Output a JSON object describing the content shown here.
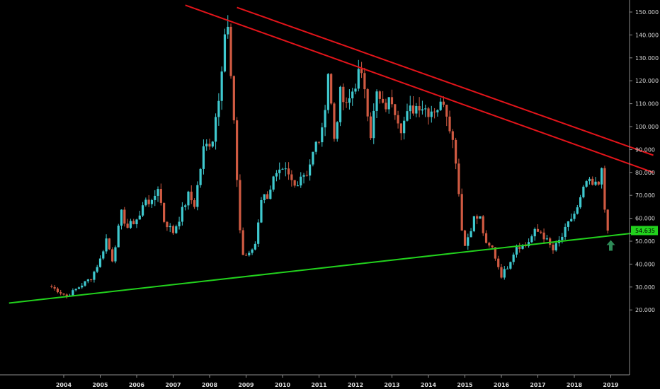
{
  "chart_data": {
    "type": "candlestick",
    "title": "",
    "xlabel": "",
    "ylabel": "",
    "ylim": [
      17,
      153
    ],
    "y_ticks": [
      "150.000",
      "140.000",
      "130.000",
      "120.000",
      "110.000",
      "100.000",
      "90.000",
      "80.000",
      "70.000",
      "60.000",
      "50.000",
      "40.000",
      "30.000",
      "20.000"
    ],
    "x_ticks": [
      "2004",
      "2005",
      "2006",
      "2007",
      "2008",
      "2009",
      "2010",
      "2011",
      "2012",
      "2013",
      "2014",
      "2015",
      "2016",
      "2017",
      "2018",
      "2019"
    ],
    "last_price_label": "54.635",
    "colors": {
      "up": "#3fc9cf",
      "down": "#d05a42",
      "background": "#000000",
      "resistance": "#e3141a",
      "support": "#22d11d",
      "price_tag": "#22d11d",
      "arrow": "#2e8b57"
    },
    "candle_interval": "monthly",
    "anchors": [
      [
        "2003-09",
        30
      ],
      [
        "2004-02",
        26
      ],
      [
        "2004-06",
        30
      ],
      [
        "2004-10",
        34
      ],
      [
        "2005-01",
        42
      ],
      [
        "2005-03",
        51
      ],
      [
        "2005-05",
        42
      ],
      [
        "2005-08",
        62
      ],
      [
        "2005-10",
        56
      ],
      [
        "2006-02",
        61
      ],
      [
        "2006-04",
        69
      ],
      [
        "2006-06",
        66
      ],
      [
        "2006-08",
        74
      ],
      [
        "2006-10",
        59
      ],
      [
        "2007-01",
        54
      ],
      [
        "2007-03",
        60
      ],
      [
        "2007-06",
        70
      ],
      [
        "2007-08",
        66
      ],
      [
        "2007-11",
        90
      ],
      [
        "2008-02",
        95
      ],
      [
        "2008-04",
        114
      ],
      [
        "2008-06",
        141
      ],
      [
        "2008-07",
        142
      ],
      [
        "2008-09",
        100
      ],
      [
        "2008-11",
        55
      ],
      [
        "2008-12",
        44
      ],
      [
        "2009-02",
        44
      ],
      [
        "2009-04",
        49
      ],
      [
        "2009-06",
        69
      ],
      [
        "2009-08",
        70
      ],
      [
        "2009-10",
        77
      ],
      [
        "2009-12",
        79
      ],
      [
        "2010-02",
        80
      ],
      [
        "2010-05",
        74
      ],
      [
        "2010-07",
        79
      ],
      [
        "2010-09",
        80
      ],
      [
        "2010-12",
        92
      ],
      [
        "2011-02",
        97
      ],
      [
        "2011-04",
        124
      ],
      [
        "2011-06",
        95
      ],
      [
        "2011-08",
        114
      ],
      [
        "2011-10",
        108
      ],
      [
        "2012-02",
        123
      ],
      [
        "2012-04",
        118
      ],
      [
        "2012-06",
        97
      ],
      [
        "2012-08",
        114
      ],
      [
        "2012-10",
        108
      ],
      [
        "2013-01",
        112
      ],
      [
        "2013-04",
        100
      ],
      [
        "2013-07",
        107
      ],
      [
        "2013-10",
        110
      ],
      [
        "2014-01",
        107
      ],
      [
        "2014-05",
        109
      ],
      [
        "2014-06",
        112
      ],
      [
        "2014-08",
        101
      ],
      [
        "2014-10",
        86
      ],
      [
        "2014-12",
        56
      ],
      [
        "2015-01",
        48
      ],
      [
        "2015-04",
        60
      ],
      [
        "2015-06",
        60
      ],
      [
        "2015-08",
        48
      ],
      [
        "2015-10",
        47
      ],
      [
        "2016-01",
        35
      ],
      [
        "2016-03",
        39
      ],
      [
        "2016-06",
        48
      ],
      [
        "2016-09",
        48
      ],
      [
        "2016-12",
        54
      ],
      [
        "2017-02",
        54
      ],
      [
        "2017-06",
        46
      ],
      [
        "2017-09",
        52
      ],
      [
        "2017-12",
        60
      ],
      [
        "2018-02",
        64
      ],
      [
        "2018-05",
        76
      ],
      [
        "2018-07",
        74
      ],
      [
        "2018-09",
        75
      ],
      [
        "2018-10",
        84
      ],
      [
        "2018-11",
        62
      ],
      [
        "2018-12",
        54.635
      ]
    ],
    "trendlines": [
      {
        "color": "resistance",
        "from": [
          "2007-05",
          153
        ],
        "to": [
          "2020-03",
          80
        ]
      },
      {
        "color": "resistance",
        "from": [
          "2008-10",
          152
        ],
        "to": [
          "2020-03",
          87.5
        ]
      },
      {
        "color": "support",
        "from": [
          "2002-07",
          23
        ],
        "to": [
          "2020-03",
          54.5
        ]
      }
    ],
    "annotations": [
      {
        "type": "arrow-up",
        "at": [
          "2019-01",
          48
        ]
      }
    ]
  }
}
